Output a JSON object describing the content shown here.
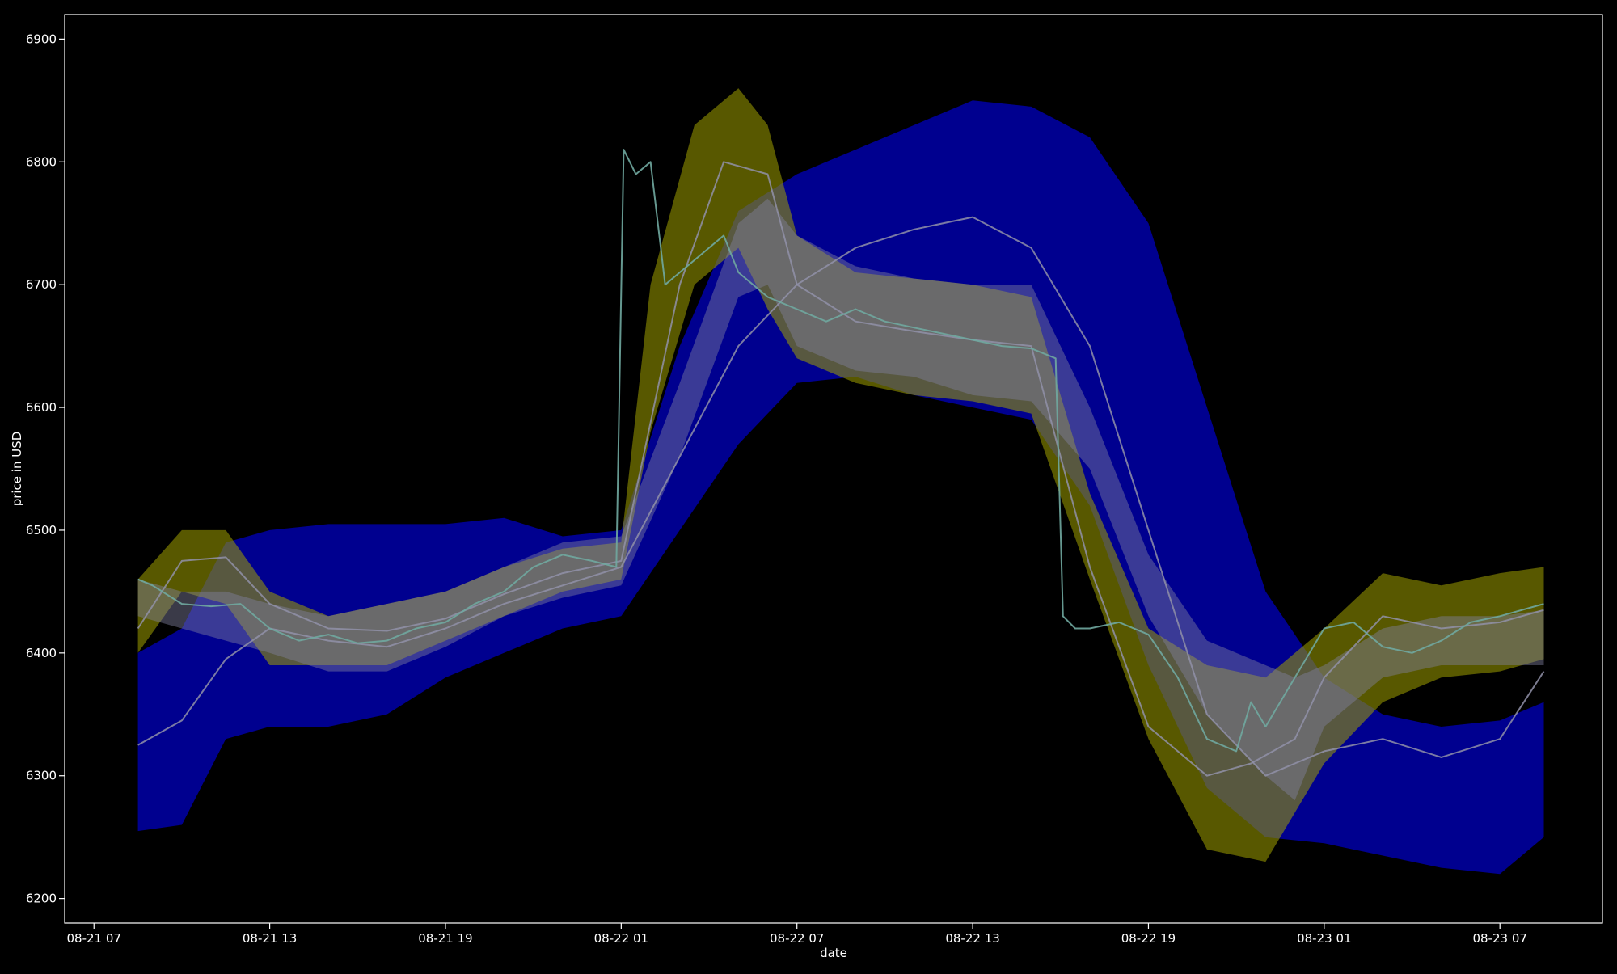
{
  "chart_data": {
    "type": "line",
    "title": "",
    "xlabel": "date",
    "ylabel": "price in USD",
    "xlim": [
      "2018-08-21 06:00",
      "2018-08-23 10:30"
    ],
    "ylim": [
      6180,
      6920
    ],
    "x_ticks": [
      "08-21 07",
      "08-21 13",
      "08-21 19",
      "08-22 01",
      "08-22 07",
      "08-22 13",
      "08-22 19",
      "08-23 01",
      "08-23 07"
    ],
    "y_ticks": [
      6200,
      6300,
      6400,
      6500,
      6600,
      6700,
      6800,
      6900
    ],
    "grid": false,
    "background": "#000000",
    "axis_color": "#ffffff",
    "series": [
      {
        "kind": "band",
        "color": "#0000cc",
        "opacity": 0.7,
        "x": [
          "2018-08-21 08:30",
          "2018-08-21 10:00",
          "2018-08-21 11:30",
          "2018-08-21 13:00",
          "2018-08-21 15:00",
          "2018-08-21 17:00",
          "2018-08-21 19:00",
          "2018-08-21 21:00",
          "2018-08-21 23:00",
          "2018-08-22 01:00",
          "2018-08-22 03:00",
          "2018-08-22 05:00",
          "2018-08-22 07:00",
          "2018-08-22 09:00",
          "2018-08-22 11:00",
          "2018-08-22 13:00",
          "2018-08-22 15:00",
          "2018-08-22 17:00",
          "2018-08-22 19:00",
          "2018-08-22 21:00",
          "2018-08-22 23:00",
          "2018-08-23 01:00",
          "2018-08-23 03:00",
          "2018-08-23 05:00",
          "2018-08-23 07:00",
          "2018-08-23 08:30"
        ],
        "upper": [
          6400,
          6420,
          6490,
          6500,
          6505,
          6505,
          6505,
          6510,
          6495,
          6500,
          6650,
          6760,
          6790,
          6810,
          6830,
          6850,
          6845,
          6820,
          6750,
          6600,
          6450,
          6380,
          6350,
          6340,
          6345,
          6360
        ],
        "lower": [
          6255,
          6260,
          6330,
          6340,
          6340,
          6350,
          6380,
          6400,
          6420,
          6430,
          6500,
          6570,
          6620,
          6625,
          6610,
          6600,
          6590,
          6520,
          6390,
          6290,
          6250,
          6245,
          6235,
          6225,
          6220,
          6250
        ]
      },
      {
        "kind": "band",
        "color": "#a0a000",
        "opacity": 0.55,
        "x": [
          "2018-08-21 08:30",
          "2018-08-21 10:00",
          "2018-08-21 11:30",
          "2018-08-21 13:00",
          "2018-08-21 15:00",
          "2018-08-21 17:00",
          "2018-08-21 19:00",
          "2018-08-21 21:00",
          "2018-08-21 23:00",
          "2018-08-22 01:00",
          "2018-08-22 02:00",
          "2018-08-22 03:30",
          "2018-08-22 05:00",
          "2018-08-22 06:00",
          "2018-08-22 07:00",
          "2018-08-22 09:00",
          "2018-08-22 11:00",
          "2018-08-22 13:00",
          "2018-08-22 15:00",
          "2018-08-22 17:00",
          "2018-08-22 19:00",
          "2018-08-22 21:00",
          "2018-08-22 23:00",
          "2018-08-23 01:00",
          "2018-08-23 03:00",
          "2018-08-23 05:00",
          "2018-08-23 07:00",
          "2018-08-23 08:30"
        ],
        "upper": [
          6460,
          6500,
          6500,
          6450,
          6430,
          6440,
          6450,
          6470,
          6485,
          6490,
          6700,
          6830,
          6860,
          6830,
          6740,
          6710,
          6705,
          6700,
          6690,
          6530,
          6420,
          6390,
          6380,
          6420,
          6465,
          6455,
          6465,
          6470
        ],
        "lower": [
          6400,
          6450,
          6440,
          6390,
          6390,
          6390,
          6410,
          6430,
          6450,
          6460,
          6580,
          6700,
          6730,
          6680,
          6640,
          6620,
          6610,
          6605,
          6595,
          6460,
          6330,
          6240,
          6230,
          6310,
          6360,
          6380,
          6385,
          6395
        ]
      },
      {
        "kind": "band",
        "color": "#8080a0",
        "opacity": 0.45,
        "x": [
          "2018-08-21 08:30",
          "2018-08-21 10:00",
          "2018-08-21 11:30",
          "2018-08-21 13:00",
          "2018-08-21 15:00",
          "2018-08-21 17:00",
          "2018-08-21 19:00",
          "2018-08-21 21:00",
          "2018-08-21 23:00",
          "2018-08-22 01:00",
          "2018-08-22 03:00",
          "2018-08-22 05:00",
          "2018-08-22 06:00",
          "2018-08-22 07:00",
          "2018-08-22 09:00",
          "2018-08-22 11:00",
          "2018-08-22 13:00",
          "2018-08-22 15:00",
          "2018-08-22 17:00",
          "2018-08-22 19:00",
          "2018-08-22 21:00",
          "2018-08-22 23:00",
          "2018-08-23 00:00",
          "2018-08-23 01:00",
          "2018-08-23 03:00",
          "2018-08-23 05:00",
          "2018-08-23 07:00",
          "2018-08-23 08:30"
        ],
        "upper": [
          6460,
          6450,
          6450,
          6440,
          6430,
          6440,
          6450,
          6470,
          6490,
          6495,
          6620,
          6750,
          6770,
          6740,
          6715,
          6705,
          6700,
          6700,
          6600,
          6480,
          6410,
          6390,
          6380,
          6390,
          6420,
          6430,
          6430,
          6435
        ],
        "lower": [
          6430,
          6420,
          6410,
          6400,
          6385,
          6385,
          6405,
          6430,
          6445,
          6455,
          6560,
          6690,
          6700,
          6650,
          6630,
          6625,
          6610,
          6605,
          6550,
          6430,
          6350,
          6300,
          6280,
          6340,
          6380,
          6390,
          6390,
          6390
        ]
      },
      {
        "kind": "line",
        "color": "#9090a8",
        "opacity": 0.85,
        "x": [
          "2018-08-21 08:30",
          "2018-08-21 10:00",
          "2018-08-21 11:30",
          "2018-08-21 13:00",
          "2018-08-21 15:00",
          "2018-08-21 17:00",
          "2018-08-21 19:00",
          "2018-08-21 21:00",
          "2018-08-21 23:00",
          "2018-08-22 01:00",
          "2018-08-22 03:00",
          "2018-08-22 04:30",
          "2018-08-22 06:00",
          "2018-08-22 07:00",
          "2018-08-22 09:00",
          "2018-08-22 11:00",
          "2018-08-22 13:00",
          "2018-08-22 15:00",
          "2018-08-22 17:00",
          "2018-08-22 19:00",
          "2018-08-22 21:00",
          "2018-08-22 22:30",
          "2018-08-23 00:00",
          "2018-08-23 01:00",
          "2018-08-23 03:00",
          "2018-08-23 05:00",
          "2018-08-23 07:00",
          "2018-08-23 08:30"
        ],
        "y": [
          6420,
          6475,
          6478,
          6440,
          6420,
          6418,
          6428,
          6448,
          6465,
          6475,
          6700,
          6800,
          6790,
          6700,
          6670,
          6662,
          6655,
          6650,
          6470,
          6340,
          6300,
          6310,
          6330,
          6380,
          6430,
          6420,
          6425,
          6435
        ]
      },
      {
        "kind": "line",
        "color": "#9090a8",
        "opacity": 0.85,
        "x": [
          "2018-08-21 08:30",
          "2018-08-21 10:00",
          "2018-08-21 11:30",
          "2018-08-21 13:00",
          "2018-08-21 15:00",
          "2018-08-21 17:00",
          "2018-08-21 19:00",
          "2018-08-21 21:00",
          "2018-08-21 23:00",
          "2018-08-22 01:00",
          "2018-08-22 03:00",
          "2018-08-22 05:00",
          "2018-08-22 07:00",
          "2018-08-22 09:00",
          "2018-08-22 11:00",
          "2018-08-22 13:00",
          "2018-08-22 15:00",
          "2018-08-22 17:00",
          "2018-08-22 19:00",
          "2018-08-22 21:00",
          "2018-08-22 23:00",
          "2018-08-23 00:00",
          "2018-08-23 01:00",
          "2018-08-23 03:00",
          "2018-08-23 05:00",
          "2018-08-23 07:00",
          "2018-08-23 08:30"
        ],
        "y": [
          6325,
          6345,
          6395,
          6420,
          6410,
          6405,
          6420,
          6440,
          6455,
          6470,
          6560,
          6650,
          6700,
          6730,
          6745,
          6755,
          6730,
          6650,
          6500,
          6350,
          6300,
          6310,
          6320,
          6330,
          6315,
          6330,
          6385
        ]
      },
      {
        "kind": "line",
        "color": "#70a8a0",
        "opacity": 0.9,
        "x": [
          "2018-08-21 08:30",
          "2018-08-21 09:00",
          "2018-08-21 10:00",
          "2018-08-21 11:00",
          "2018-08-21 12:00",
          "2018-08-21 13:00",
          "2018-08-21 14:00",
          "2018-08-21 15:00",
          "2018-08-21 16:00",
          "2018-08-21 17:00",
          "2018-08-21 18:00",
          "2018-08-21 19:00",
          "2018-08-21 20:00",
          "2018-08-21 21:00",
          "2018-08-21 22:00",
          "2018-08-21 23:00",
          "2018-08-22 00:00",
          "2018-08-22 00:50",
          "2018-08-22 01:05",
          "2018-08-22 01:30",
          "2018-08-22 02:00",
          "2018-08-22 02:30",
          "2018-08-22 03:00",
          "2018-08-22 04:00",
          "2018-08-22 04:30",
          "2018-08-22 05:00",
          "2018-08-22 06:00",
          "2018-08-22 07:00",
          "2018-08-22 08:00",
          "2018-08-22 09:00",
          "2018-08-22 10:00",
          "2018-08-22 11:00",
          "2018-08-22 12:00",
          "2018-08-22 13:00",
          "2018-08-22 14:00",
          "2018-08-22 15:00",
          "2018-08-22 15:50",
          "2018-08-22 16:05",
          "2018-08-22 16:30",
          "2018-08-22 17:00",
          "2018-08-22 18:00",
          "2018-08-22 19:00",
          "2018-08-22 20:00",
          "2018-08-22 21:00",
          "2018-08-22 22:00",
          "2018-08-22 22:30",
          "2018-08-22 23:00",
          "2018-08-23 00:00",
          "2018-08-23 01:00",
          "2018-08-23 02:00",
          "2018-08-23 03:00",
          "2018-08-23 04:00",
          "2018-08-23 05:00",
          "2018-08-23 06:00",
          "2018-08-23 07:00",
          "2018-08-23 08:30"
        ],
        "y": [
          6460,
          6455,
          6440,
          6438,
          6440,
          6420,
          6410,
          6415,
          6408,
          6410,
          6420,
          6425,
          6440,
          6450,
          6470,
          6480,
          6475,
          6470,
          6810,
          6790,
          6800,
          6700,
          6710,
          6730,
          6740,
          6710,
          6690,
          6680,
          6670,
          6680,
          6670,
          6665,
          6660,
          6655,
          6650,
          6648,
          6640,
          6430,
          6420,
          6420,
          6425,
          6415,
          6380,
          6330,
          6320,
          6360,
          6340,
          6380,
          6420,
          6425,
          6405,
          6400,
          6410,
          6425,
          6430,
          6440
        ]
      }
    ]
  }
}
